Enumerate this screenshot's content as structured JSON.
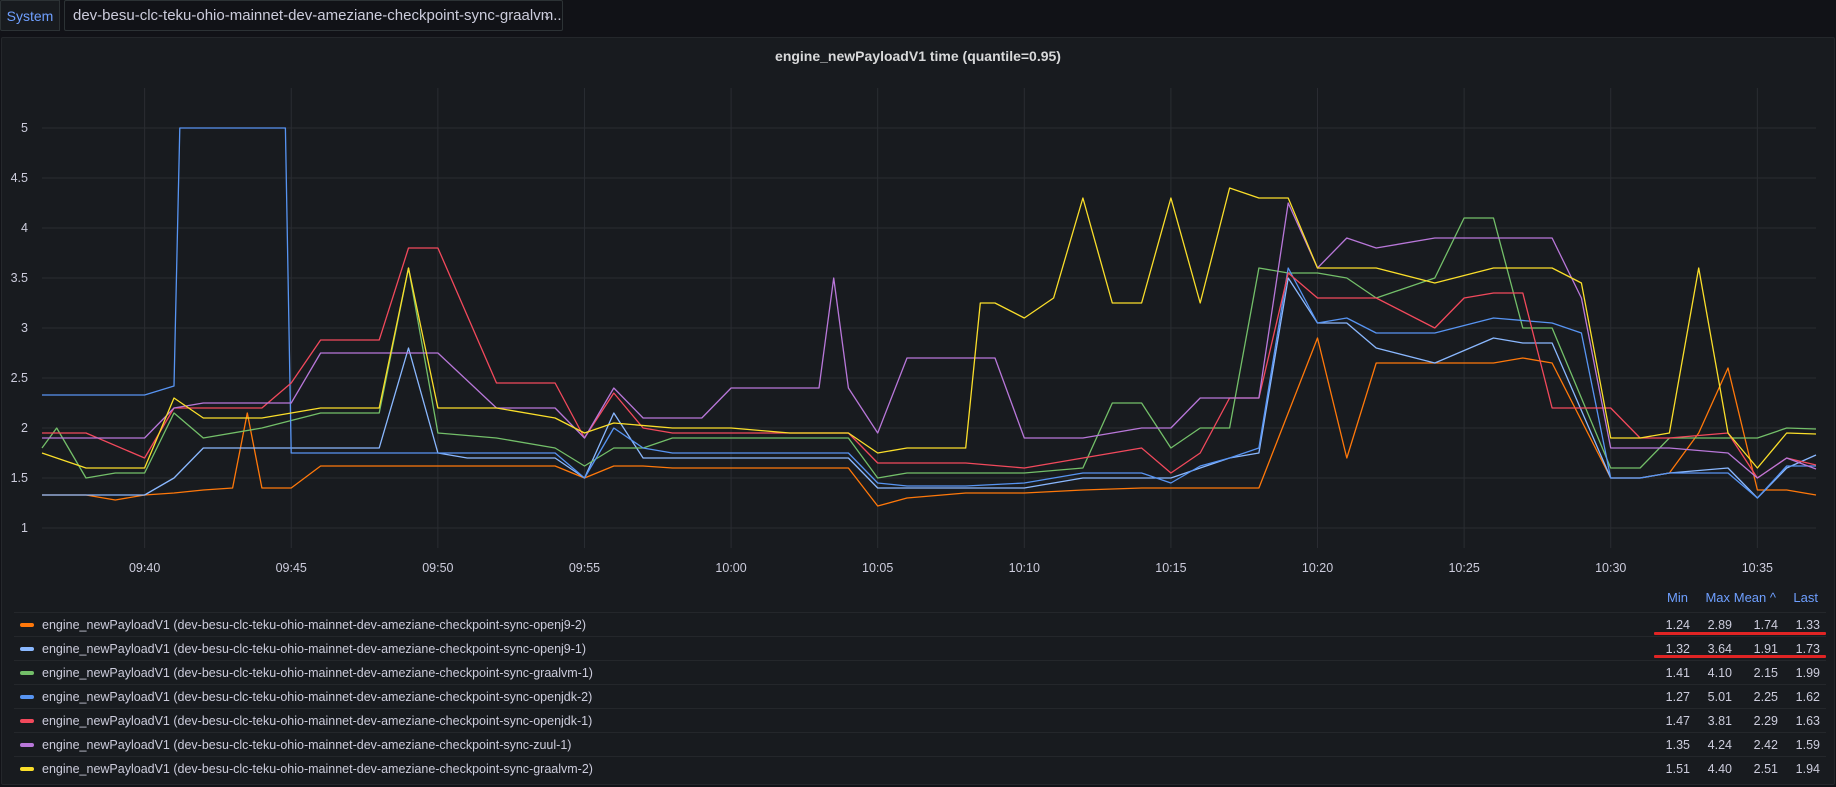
{
  "toolbar": {
    "variable_label": "System",
    "variable_value": "dev-besu-clc-teku-ohio-mainnet-dev-ameziane-checkpoint-sync-graalvm..."
  },
  "panel": {
    "title": "engine_newPayloadV1 time (quantile=0.95)"
  },
  "legend_headers": {
    "min": "Min",
    "max": "Max",
    "mean": "Mean",
    "last": "Last",
    "sort_indicator": "^"
  },
  "chart_data": {
    "type": "line",
    "title": "engine_newPayloadV1 time (quantile=0.95)",
    "x_ticks": [
      "09:40",
      "09:45",
      "09:50",
      "09:55",
      "10:00",
      "10:05",
      "10:10",
      "10:15",
      "10:20",
      "10:25",
      "10:30",
      "10:35"
    ],
    "x_range_min": [
      36.5,
      97
    ],
    "y_ticks": [
      1,
      1.5,
      2,
      2.5,
      3,
      3.5,
      4,
      4.5,
      5
    ],
    "ylim": [
      0.8,
      5.4
    ],
    "grid": true,
    "legend_position": "bottom",
    "series": [
      {
        "name": "engine_newPayloadV1 (dev-besu-clc-teku-ohio-mainnet-dev-ameziane-checkpoint-sync-openj9-2)",
        "color": "#ff780a",
        "min": "1.24",
        "max": "2.89",
        "mean": "1.74",
        "last": "1.33",
        "x": [
          36.5,
          38,
          39,
          40,
          41,
          42,
          43,
          43.5,
          44,
          45,
          46,
          48,
          50,
          52,
          54,
          55,
          56,
          57,
          58,
          60,
          62,
          64,
          65,
          66,
          68,
          70,
          72,
          74,
          76,
          78,
          80,
          81,
          82,
          84,
          86,
          87,
          88,
          90,
          91,
          92,
          93,
          94,
          95,
          96,
          97
        ],
        "y": [
          1.33,
          1.33,
          1.28,
          1.33,
          1.35,
          1.38,
          1.4,
          2.15,
          1.4,
          1.4,
          1.62,
          1.62,
          1.62,
          1.62,
          1.62,
          1.5,
          1.62,
          1.62,
          1.6,
          1.6,
          1.6,
          1.6,
          1.22,
          1.3,
          1.35,
          1.35,
          1.38,
          1.4,
          1.4,
          1.4,
          2.9,
          1.7,
          2.65,
          2.65,
          2.65,
          2.7,
          2.65,
          1.5,
          1.5,
          1.55,
          1.95,
          2.6,
          1.38,
          1.38,
          1.33
        ]
      },
      {
        "name": "engine_newPayloadV1 (dev-besu-clc-teku-ohio-mainnet-dev-ameziane-checkpoint-sync-openj9-1)",
        "color": "#8ab8ff",
        "min": "1.32",
        "max": "3.64",
        "mean": "1.91",
        "last": "1.73",
        "x": [
          36.5,
          38,
          40,
          41,
          42,
          44,
          46,
          48,
          49,
          50,
          51,
          52,
          54,
          55,
          56,
          57,
          58,
          60,
          62,
          64,
          65,
          66,
          68,
          70,
          72,
          74,
          75,
          76,
          77,
          78,
          79,
          80,
          81,
          82,
          84,
          86,
          87,
          88,
          90,
          91,
          92,
          94,
          95,
          96,
          97
        ],
        "y": [
          1.33,
          1.33,
          1.33,
          1.5,
          1.8,
          1.8,
          1.8,
          1.8,
          2.8,
          1.75,
          1.7,
          1.7,
          1.7,
          1.5,
          2.15,
          1.7,
          1.7,
          1.7,
          1.7,
          1.7,
          1.4,
          1.4,
          1.4,
          1.4,
          1.5,
          1.5,
          1.5,
          1.6,
          1.7,
          1.75,
          3.5,
          3.05,
          3.05,
          2.8,
          2.65,
          2.9,
          2.85,
          2.85,
          1.5,
          1.5,
          1.55,
          1.6,
          1.3,
          1.6,
          1.73
        ]
      },
      {
        "name": "engine_newPayloadV1 (dev-besu-clc-teku-ohio-mainnet-dev-ameziane-checkpoint-sync-graalvm-1)",
        "color": "#73bf69",
        "min": "1.41",
        "max": "4.10",
        "mean": "2.15",
        "last": "1.99",
        "x": [
          36.5,
          37,
          38,
          39,
          40,
          41,
          42,
          44,
          46,
          48,
          49,
          50,
          52,
          54,
          55,
          56,
          57,
          58,
          60,
          62,
          64,
          65,
          66,
          68,
          70,
          72,
          73,
          74,
          75,
          76,
          77,
          78,
          79,
          80,
          81,
          82,
          84,
          85,
          86,
          87,
          88,
          90,
          91,
          92,
          94,
          95,
          96,
          97
        ],
        "y": [
          1.8,
          2.0,
          1.5,
          1.55,
          1.55,
          2.15,
          1.9,
          2.0,
          2.15,
          2.15,
          3.6,
          1.95,
          1.9,
          1.8,
          1.62,
          1.8,
          1.8,
          1.9,
          1.9,
          1.9,
          1.9,
          1.5,
          1.55,
          1.55,
          1.55,
          1.6,
          2.25,
          2.25,
          1.8,
          2.0,
          2.0,
          3.6,
          3.55,
          3.55,
          3.5,
          3.3,
          3.5,
          4.1,
          4.1,
          3.0,
          3.0,
          1.6,
          1.6,
          1.9,
          1.9,
          1.9,
          2.0,
          1.99
        ]
      },
      {
        "name": "engine_newPayloadV1 (dev-besu-clc-teku-ohio-mainnet-dev-ameziane-checkpoint-sync-openjdk-2)",
        "color": "#5794f2",
        "min": "1.27",
        "max": "5.01",
        "mean": "2.25",
        "last": "1.62",
        "x": [
          36.5,
          38,
          40,
          41,
          41.2,
          44,
          44.8,
          45,
          46,
          48,
          50,
          52,
          54,
          55,
          56,
          57,
          58,
          60,
          62,
          64,
          65,
          66,
          68,
          70,
          72,
          74,
          75,
          76,
          77,
          78,
          79,
          80,
          81,
          82,
          84,
          86,
          88,
          89,
          90,
          91,
          92,
          94,
          95,
          96,
          97
        ],
        "y": [
          2.33,
          2.33,
          2.33,
          2.42,
          5.0,
          5.0,
          5.0,
          1.75,
          1.75,
          1.75,
          1.75,
          1.75,
          1.75,
          1.5,
          2.0,
          1.8,
          1.75,
          1.75,
          1.75,
          1.75,
          1.45,
          1.42,
          1.42,
          1.45,
          1.55,
          1.55,
          1.45,
          1.62,
          1.7,
          1.8,
          3.6,
          3.05,
          3.1,
          2.95,
          2.95,
          3.1,
          3.05,
          2.95,
          1.5,
          1.5,
          1.55,
          1.55,
          1.3,
          1.62,
          1.62
        ]
      },
      {
        "name": "engine_newPayloadV1 (dev-besu-clc-teku-ohio-mainnet-dev-ameziane-checkpoint-sync-openjdk-1)",
        "color": "#f2495c",
        "min": "1.47",
        "max": "3.81",
        "mean": "2.29",
        "last": "1.63",
        "x": [
          36.5,
          38,
          40,
          41,
          42,
          44,
          45,
          46,
          48,
          49,
          50,
          52,
          54,
          55,
          56,
          57,
          58,
          60,
          62,
          64,
          65,
          66,
          68,
          70,
          72,
          74,
          75,
          76,
          77,
          78,
          79,
          80,
          82,
          84,
          85,
          86,
          87,
          88,
          90,
          91,
          92,
          94,
          95,
          96,
          97
        ],
        "y": [
          1.95,
          1.95,
          1.7,
          2.2,
          2.2,
          2.2,
          2.45,
          2.88,
          2.88,
          3.8,
          3.8,
          2.45,
          2.45,
          1.9,
          2.35,
          2.0,
          1.95,
          1.95,
          1.95,
          1.95,
          1.65,
          1.65,
          1.65,
          1.6,
          1.7,
          1.8,
          1.55,
          1.75,
          2.3,
          2.3,
          3.55,
          3.3,
          3.3,
          3.0,
          3.3,
          3.35,
          3.35,
          2.2,
          2.2,
          1.9,
          1.9,
          1.95,
          1.5,
          1.7,
          1.63
        ]
      },
      {
        "name": "engine_newPayloadV1 (dev-besu-clc-teku-ohio-mainnet-dev-ameziane-checkpoint-sync-zuul-1)",
        "color": "#b877d9",
        "min": "1.35",
        "max": "4.24",
        "mean": "2.42",
        "last": "1.59",
        "x": [
          36.5,
          38,
          40,
          41,
          42,
          44,
          45,
          46,
          48,
          50,
          52,
          54,
          55,
          56,
          57,
          58,
          59,
          60,
          62,
          63,
          63.5,
          64,
          65,
          66,
          68,
          69,
          70,
          72,
          74,
          75,
          76,
          78,
          79,
          80,
          81,
          82,
          84,
          86,
          88,
          89,
          90,
          91,
          92,
          94,
          95,
          96,
          97
        ],
        "y": [
          1.9,
          1.9,
          1.9,
          2.2,
          2.25,
          2.25,
          2.25,
          2.75,
          2.75,
          2.75,
          2.2,
          2.2,
          1.9,
          2.4,
          2.1,
          2.1,
          2.1,
          2.4,
          2.4,
          2.4,
          3.5,
          2.4,
          1.95,
          2.7,
          2.7,
          2.7,
          1.9,
          1.9,
          2.0,
          2.0,
          2.3,
          2.3,
          4.25,
          3.6,
          3.9,
          3.8,
          3.9,
          3.9,
          3.9,
          3.3,
          1.8,
          1.8,
          1.8,
          1.75,
          1.5,
          1.7,
          1.59
        ]
      },
      {
        "name": "engine_newPayloadV1 (dev-besu-clc-teku-ohio-mainnet-dev-ameziane-checkpoint-sync-graalvm-2)",
        "color": "#fade2a",
        "min": "1.51",
        "max": "4.40",
        "mean": "2.51",
        "last": "1.94",
        "x": [
          36.5,
          38,
          40,
          41,
          42,
          44,
          46,
          48,
          49,
          50,
          52,
          54,
          55,
          56,
          58,
          60,
          62,
          64,
          65,
          66,
          68,
          68.5,
          69,
          70,
          71,
          72,
          73,
          74,
          75,
          76,
          77,
          78,
          79,
          80,
          82,
          84,
          86,
          88,
          89,
          90,
          91,
          92,
          93,
          94,
          95,
          96,
          97
        ],
        "y": [
          1.75,
          1.6,
          1.6,
          2.3,
          2.1,
          2.1,
          2.2,
          2.2,
          3.6,
          2.2,
          2.2,
          2.1,
          1.95,
          2.05,
          2.0,
          2.0,
          1.95,
          1.95,
          1.75,
          1.8,
          1.8,
          3.25,
          3.25,
          3.1,
          3.3,
          4.3,
          3.25,
          3.25,
          4.3,
          3.25,
          4.4,
          4.3,
          4.3,
          3.6,
          3.6,
          3.45,
          3.6,
          3.6,
          3.45,
          1.9,
          1.9,
          1.95,
          3.6,
          1.95,
          1.6,
          1.95,
          1.94
        ]
      }
    ]
  }
}
